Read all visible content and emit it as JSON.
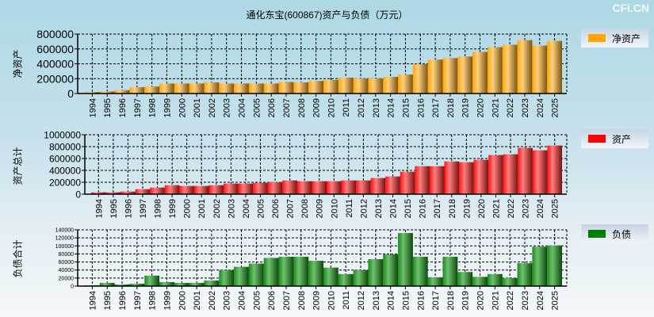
{
  "title": "通化东宝(600867)资产与负债（万元）",
  "watermark": "CFi.CN",
  "chart_data": [
    {
      "type": "bar",
      "name": "net-assets",
      "ylabel": "净资产",
      "legend": "净资产",
      "color": "#ffa500",
      "ylim": [
        0,
        800000
      ],
      "yticks": [
        0,
        200000,
        400000,
        600000,
        800000
      ],
      "categories": [
        "1994",
        "1995",
        "1996",
        "1997",
        "1998",
        "1999",
        "2000",
        "2001",
        "2002",
        "2003",
        "2004",
        "2005",
        "2006",
        "2007",
        "2008",
        "2009",
        "2010",
        "2011",
        "2012",
        "2013",
        "2014",
        "2015",
        "2016",
        "2017",
        "2018",
        "2019",
        "2020",
        "2021",
        "2022",
        "2023",
        "2024",
        "2025"
      ],
      "values": [
        20000,
        28000,
        45000,
        85000,
        95000,
        135000,
        135000,
        135000,
        150000,
        135000,
        135000,
        135000,
        135000,
        155000,
        150000,
        170000,
        182000,
        214000,
        203000,
        203000,
        224000,
        256000,
        396000,
        456000,
        477000,
        498000,
        561000,
        624000,
        656000,
        719000,
        645000,
        708000
      ]
    },
    {
      "type": "bar",
      "name": "total-assets",
      "ylabel": "资产总计",
      "legend": "资产",
      "color": "#ff0000",
      "ylim": [
        0,
        1000000
      ],
      "yticks": [
        0,
        200000,
        400000,
        600000,
        800000,
        1000000
      ],
      "categories": [
        "1994",
        "1995",
        "1996",
        "1997",
        "1998",
        "1999",
        "2000",
        "2001",
        "2002",
        "2003",
        "2004",
        "2005",
        "2006",
        "2007",
        "2008",
        "2009",
        "2010",
        "2011",
        "2012",
        "2013",
        "2014",
        "2015",
        "2016",
        "2017",
        "2018",
        "2019",
        "2020",
        "2021",
        "2022",
        "2023",
        "2024",
        "2025"
      ],
      "values": [
        31000,
        31000,
        44000,
        84000,
        111000,
        151000,
        138000,
        138000,
        151000,
        178000,
        178000,
        191000,
        204000,
        231000,
        218000,
        218000,
        218000,
        231000,
        231000,
        271000,
        298000,
        378000,
        471000,
        471000,
        551000,
        538000,
        578000,
        658000,
        671000,
        778000,
        738000,
        818000
      ]
    },
    {
      "type": "bar",
      "name": "total-liabilities",
      "ylabel": "负债合计",
      "legend": "负债",
      "color": "#008000",
      "ylim": [
        0,
        140000
      ],
      "yticks": [
        0,
        20000,
        40000,
        60000,
        80000,
        100000,
        120000,
        140000
      ],
      "categories": [
        "1994",
        "1995",
        "1996",
        "1997",
        "1998",
        "1999",
        "2000",
        "2001",
        "2002",
        "2003",
        "2004",
        "2005",
        "2006",
        "2007",
        "2008",
        "2009",
        "2010",
        "2011",
        "2012",
        "2013",
        "2014",
        "2015",
        "2016",
        "2017",
        "2018",
        "2019",
        "2020",
        "2021",
        "2022",
        "2023",
        "2024",
        "2025"
      ],
      "values": [
        2000,
        8000,
        4000,
        6000,
        26000,
        10000,
        8000,
        8000,
        14000,
        40000,
        48000,
        56000,
        70000,
        73000,
        73000,
        63000,
        46000,
        30000,
        40000,
        67000,
        79000,
        132000,
        73000,
        22000,
        73000,
        35000,
        23000,
        30000,
        20000,
        57000,
        98000,
        101000
      ]
    }
  ]
}
